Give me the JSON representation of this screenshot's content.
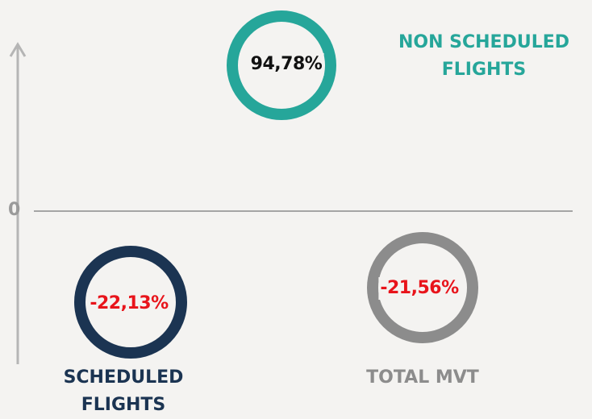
{
  "axis_label": "0",
  "items": [
    {
      "name": "NON SCHEDULED FLIGHTS",
      "value": "94,78%"
    },
    {
      "name": "SCHEDULED FLIGHTS",
      "value": "-22,13%"
    },
    {
      "name": "TOTAL MVT",
      "value": "-21,56%"
    }
  ]
}
